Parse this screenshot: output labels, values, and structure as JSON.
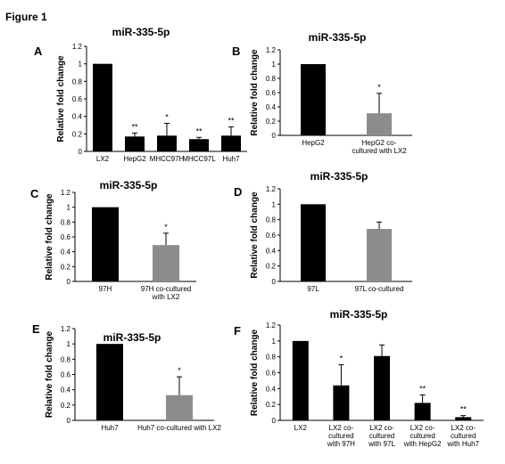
{
  "figure_title": "Figure 1",
  "colors": {
    "black_bar": "#000000",
    "gray_bar": "#8c8c8c",
    "axis": "#000000"
  },
  "chart_data": [
    {
      "panel": "A",
      "type": "bar",
      "title": "miR-335-5p",
      "ylabel": "Relative fold change",
      "ylim": [
        0,
        1.2
      ],
      "yticks": [
        "0",
        "0.2",
        "0.4",
        "0.6",
        "0.8",
        "1",
        "1.2"
      ],
      "categories": [
        [
          "LX2"
        ],
        [
          "HepG2"
        ],
        [
          "MHCC97H"
        ],
        [
          "MHCC97L"
        ],
        [
          "Huh7"
        ]
      ],
      "values": [
        1.0,
        0.17,
        0.18,
        0.14,
        0.18
      ],
      "errors": [
        0,
        0.04,
        0.14,
        0.02,
        0.1
      ],
      "colors": [
        "#000000",
        "#000000",
        "#000000",
        "#000000",
        "#000000"
      ],
      "sig": [
        "",
        "**",
        "*",
        "**",
        "**"
      ]
    },
    {
      "panel": "B",
      "type": "bar",
      "title": "miR-335-5p",
      "ylabel": "Relative fold change",
      "ylim": [
        0,
        1.2
      ],
      "yticks": [
        "0",
        "0.2",
        "0.4",
        "0.6",
        "0.8",
        "1",
        "1.2"
      ],
      "categories": [
        [
          "HepG2"
        ],
        [
          "HepG2 co-",
          "cultured with LX2"
        ]
      ],
      "values": [
        1.0,
        0.31
      ],
      "errors": [
        0,
        0.28
      ],
      "colors": [
        "#000000",
        "#8c8c8c"
      ],
      "sig": [
        "",
        "*"
      ]
    },
    {
      "panel": "C",
      "type": "bar",
      "title": "miR-335-5p",
      "ylabel": "Relative fold change",
      "ylim": [
        0,
        1.2
      ],
      "yticks": [
        "0",
        "0.2",
        "0.4",
        "0.6",
        "0.8",
        "1",
        "1.2"
      ],
      "categories": [
        [
          "97H"
        ],
        [
          "97H co-cultured",
          "with LX2"
        ]
      ],
      "values": [
        1.0,
        0.49
      ],
      "errors": [
        0,
        0.16
      ],
      "colors": [
        "#000000",
        "#8c8c8c"
      ],
      "sig": [
        "",
        "*"
      ]
    },
    {
      "panel": "D",
      "type": "bar",
      "title": "miR-335-5p",
      "ylabel": "Relative fold change",
      "ylim": [
        0,
        1.2
      ],
      "yticks": [
        "0",
        "0.2",
        "0.4",
        "0.6",
        "0.8",
        "1",
        "1.2"
      ],
      "categories": [
        [
          "97L"
        ],
        [
          "97L co-cultured"
        ]
      ],
      "values": [
        1.0,
        0.68
      ],
      "errors": [
        0,
        0.09
      ],
      "colors": [
        "#000000",
        "#8c8c8c"
      ],
      "sig": [
        "",
        ""
      ]
    },
    {
      "panel": "E",
      "type": "bar",
      "title": "miR-335-5p",
      "ylabel": "Relative fold change",
      "ylim": [
        0,
        1.2
      ],
      "yticks": [
        "0",
        "0.2",
        "0.4",
        "0.6",
        "0.8",
        "1",
        "1.2"
      ],
      "categories": [
        [
          "Huh7"
        ],
        [
          "Huh7 co-cultured with LX2"
        ]
      ],
      "values": [
        1.0,
        0.33
      ],
      "errors": [
        0,
        0.24
      ],
      "colors": [
        "#000000",
        "#8c8c8c"
      ],
      "sig": [
        "",
        "*"
      ]
    },
    {
      "panel": "F",
      "type": "bar",
      "title": "miR-335-5p",
      "ylabel": "Relative fold change",
      "ylim": [
        0,
        1.2
      ],
      "yticks": [
        "0",
        "0.2",
        "0.4",
        "0.6",
        "0.8",
        "1",
        "1.2"
      ],
      "categories": [
        [
          "LX2"
        ],
        [
          "LX2 co-",
          "cultured",
          "with 97H"
        ],
        [
          "LX2 co-",
          "cultured",
          "with 97L"
        ],
        [
          "LX2 co-",
          "cultured",
          "with HepG2"
        ],
        [
          "LX2 co-",
          "cultured",
          "with Huh7"
        ]
      ],
      "values": [
        1.0,
        0.44,
        0.81,
        0.22,
        0.04
      ],
      "errors": [
        0,
        0.26,
        0.14,
        0.1,
        0.02
      ],
      "colors": [
        "#000000",
        "#000000",
        "#000000",
        "#000000",
        "#000000"
      ],
      "sig": [
        "",
        "*",
        "",
        "**",
        "**"
      ]
    }
  ]
}
